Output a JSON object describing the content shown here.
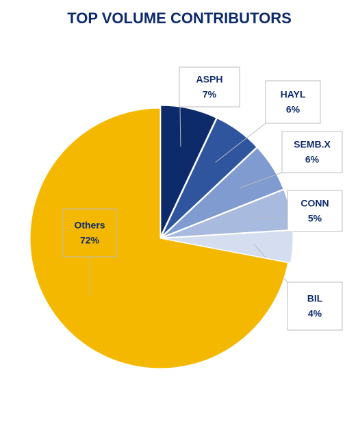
{
  "chart_data": {
    "type": "pie",
    "title": "TOP VOLUME CONTRIBUTORS",
    "categories": [
      "ASPH",
      "HAYL",
      "SEMB.X",
      "CONN",
      "BIL",
      "Others"
    ],
    "values": [
      7,
      6,
      6,
      5,
      4,
      72
    ],
    "value_labels": [
      "7%",
      "6%",
      "6%",
      "5%",
      "4%",
      "72%"
    ],
    "colors": [
      "#0d2a6b",
      "#2f559f",
      "#7f9bd0",
      "#a8bbdf",
      "#d5def0",
      "#f5b800"
    ]
  }
}
